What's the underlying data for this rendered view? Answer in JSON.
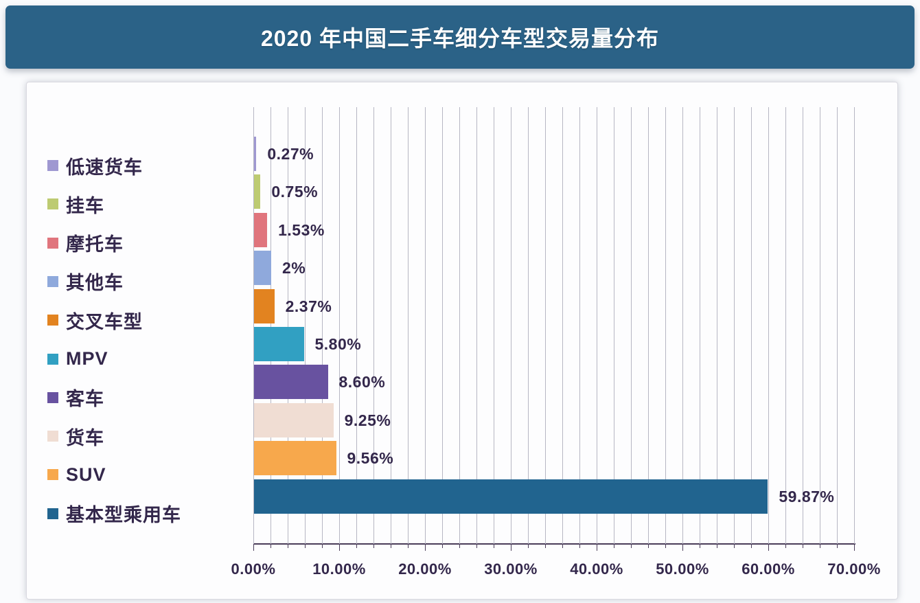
{
  "title": "2020 年中国二手车细分车型交易量分布",
  "theme": {
    "banner_bg": "#2b6287",
    "title_color": "#ffffff",
    "page_bg": "#fafbfd",
    "card_bg": "#fdfdfe",
    "grid_color": "#b6b6c3",
    "axis_color": "#4a3c59",
    "text_color": "#33274b"
  },
  "chart_data": {
    "type": "bar",
    "orientation": "horizontal",
    "title": "2020 年中国二手车细分车型交易量分布",
    "legend_position": "left",
    "grid": "vertical minor gridlines every 2%",
    "categories": [
      "低速货车",
      "挂车",
      "摩托车",
      "其他车",
      "交叉车型",
      "MPV",
      "客车",
      "货车",
      "SUV",
      "基本型乘用车"
    ],
    "values": [
      0.27,
      0.75,
      1.53,
      2,
      2.37,
      5.8,
      8.6,
      9.25,
      9.56,
      59.87
    ],
    "value_labels": [
      "0.27%",
      "0.75%",
      "1.53%",
      "2%",
      "2.37%",
      "5.80%",
      "8.60%",
      "9.25%",
      "9.56%",
      "59.87%"
    ],
    "colors": [
      "#9f98d1",
      "#bdcb72",
      "#e0757d",
      "#8fa9dc",
      "#e28320",
      "#31a0c2",
      "#6852a0",
      "#f0ddd3",
      "#f7a84c",
      "#21648f"
    ],
    "xlabel": "",
    "ylabel": "",
    "x_axis": {
      "min": 0,
      "max": 70,
      "major_step": 10,
      "minor_step": 2,
      "tick_labels": [
        "0.00%",
        "10.00%",
        "20.00%",
        "30.00%",
        "40.00%",
        "50.00%",
        "60.00%",
        "70.00%"
      ]
    }
  }
}
